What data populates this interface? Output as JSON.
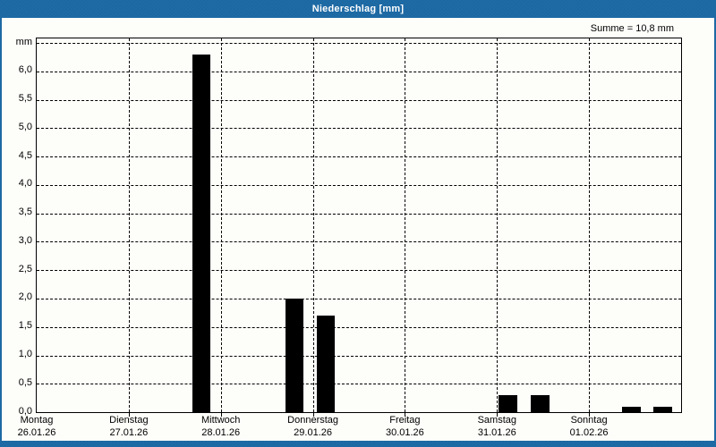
{
  "window": {
    "title": "Niederschlag [mm]"
  },
  "header": {
    "sum_label": "Summe = 10,8 mm"
  },
  "chart_data": {
    "type": "bar",
    "title": "Niederschlag [mm]",
    "sum_mm": "10,8",
    "grid": "dashed",
    "legend": "none",
    "bar_color": "#000000",
    "bar_width_days": 0.2,
    "y_axis": {
      "unit_label": "mm",
      "min": 0,
      "max": 6.5,
      "tick_step": 0.5,
      "tick_labels": [
        "0,0",
        "0,5",
        "1,0",
        "1,5",
        "2,0",
        "2,5",
        "3,0",
        "3,5",
        "4,0",
        "4,5",
        "5,0",
        "5,5",
        "6,0"
      ]
    },
    "x_axis": {
      "span_days": 7,
      "days": [
        {
          "name": "Montag",
          "date": "26.01.26"
        },
        {
          "name": "Dienstag",
          "date": "27.01.26"
        },
        {
          "name": "Mittwoch",
          "date": "28.01.26"
        },
        {
          "name": "Donnerstag",
          "date": "29.01.26"
        },
        {
          "name": "Freitag",
          "date": "30.01.26"
        },
        {
          "name": "Samstag",
          "date": "31.01.26"
        },
        {
          "name": "Sonntag",
          "date": "01.02.26"
        }
      ]
    },
    "bars": [
      {
        "day_offset": 1.79,
        "value": 6.3
      },
      {
        "day_offset": 2.8,
        "value": 2.0
      },
      {
        "day_offset": 3.14,
        "value": 1.7
      },
      {
        "day_offset": 5.12,
        "value": 0.3
      },
      {
        "day_offset": 5.47,
        "value": 0.3
      },
      {
        "day_offset": 6.46,
        "value": 0.1
      },
      {
        "day_offset": 6.8,
        "value": 0.1
      }
    ]
  },
  "colors": {
    "frame_blue": "#1f6ba6",
    "frame_blue_dot": "#155d95",
    "title_text": "#ffffff",
    "chart_bg": "#fdfdfa",
    "axis_and_bars": "#000000"
  }
}
